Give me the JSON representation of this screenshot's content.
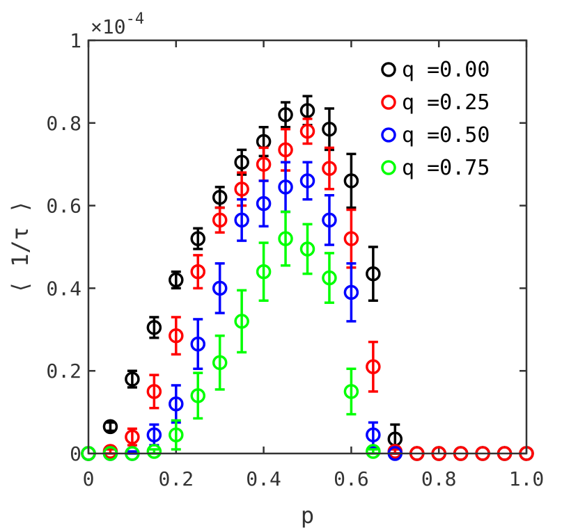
{
  "chart_data": {
    "type": "scatter",
    "xlabel": "p",
    "ylabel": "⟨ 1/τ ⟩",
    "y_multiplier": {
      "base": "×10",
      "exponent": "-4"
    },
    "xlim": [
      0,
      1
    ],
    "ylim": [
      0,
      1
    ],
    "x_ticks": [
      0,
      0.2,
      0.4,
      0.6,
      0.8,
      1.0
    ],
    "x_tick_labels": [
      "0",
      "0.2",
      "0.4",
      "0.6",
      "0.8",
      "1.0"
    ],
    "y_ticks": [
      0,
      0.2,
      0.4,
      0.6,
      0.8,
      1
    ],
    "y_tick_labels": [
      "0",
      "0.2",
      "0.4",
      "0.6",
      "0.8",
      "1"
    ],
    "grid": false,
    "legend_position": "top-right",
    "x": [
      0,
      0.05,
      0.1,
      0.15,
      0.2,
      0.25,
      0.3,
      0.35,
      0.4,
      0.45,
      0.5,
      0.55,
      0.6,
      0.65,
      0.7,
      0.75,
      0.8,
      0.85,
      0.9,
      0.95,
      1.0
    ],
    "series": [
      {
        "name": "q =0.00",
        "color": "#000000",
        "values": [
          0,
          0.065,
          0.18,
          0.305,
          0.42,
          0.52,
          0.62,
          0.705,
          0.755,
          0.82,
          0.83,
          0.785,
          0.66,
          0.435,
          0.035,
          0,
          0,
          0,
          0,
          0,
          0
        ],
        "errors": [
          0,
          0.01,
          0.02,
          0.025,
          0.02,
          0.025,
          0.025,
          0.03,
          0.035,
          0.03,
          0.035,
          0.05,
          0.065,
          0.065,
          0.035,
          0,
          0,
          0,
          0,
          0,
          0
        ]
      },
      {
        "name": "q =0.25",
        "color": "#ff0000",
        "values": [
          0,
          0.005,
          0.04,
          0.15,
          0.285,
          0.44,
          0.565,
          0.64,
          0.7,
          0.735,
          0.78,
          0.69,
          0.52,
          0.21,
          0.005,
          0,
          0,
          0,
          0,
          0,
          0
        ],
        "errors": [
          0,
          0.005,
          0.02,
          0.04,
          0.045,
          0.04,
          0.03,
          0.04,
          0.04,
          0.05,
          0.03,
          0.05,
          0.07,
          0.06,
          0.005,
          0,
          0,
          0,
          0,
          0,
          0
        ]
      },
      {
        "name": "q =0.50",
        "color": "#0000ff",
        "values": [
          0,
          0,
          0,
          0.045,
          0.12,
          0.265,
          0.4,
          0.565,
          0.605,
          0.645,
          0.66,
          0.565,
          0.39,
          0.045,
          0,
          0,
          0,
          0,
          0,
          0,
          0
        ],
        "errors": [
          0,
          0,
          0.005,
          0.025,
          0.045,
          0.06,
          0.06,
          0.05,
          0.055,
          0.06,
          0.045,
          0.06,
          0.07,
          0.03,
          0,
          0,
          0,
          0,
          0,
          0,
          0
        ],
        "clip_x_max": 0.7
      },
      {
        "name": "q =0.75",
        "color": "#00ff00",
        "values": [
          0,
          0,
          0,
          0.005,
          0.045,
          0.14,
          0.22,
          0.32,
          0.44,
          0.52,
          0.495,
          0.425,
          0.15,
          0.005,
          0,
          0,
          0,
          0,
          0,
          0,
          0
        ],
        "errors": [
          0,
          0,
          0,
          0.005,
          0.035,
          0.055,
          0.065,
          0.075,
          0.07,
          0.065,
          0.06,
          0.06,
          0.055,
          0.005,
          0,
          0,
          0,
          0,
          0,
          0,
          0
        ],
        "clip_x_max": 0.65
      }
    ]
  }
}
